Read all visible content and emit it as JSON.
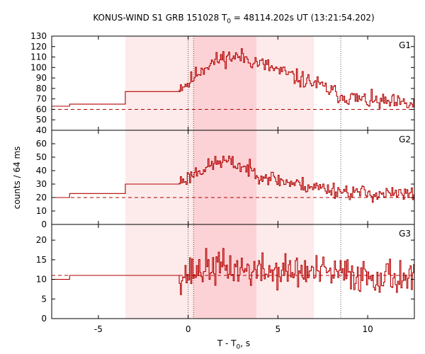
{
  "chart_data": {
    "type": "line",
    "title": {
      "prefix": "KONUS-WIND S1 GRB 151028 T",
      "sub": "0",
      "suffix": " = 48114.202s UT (13:21:54.202)"
    },
    "xlabel": {
      "prefix": "T - T",
      "sub": "0",
      "suffix": ", s"
    },
    "ylabel": "counts / 64 ms",
    "xlim": [
      -7.6,
      12.6
    ],
    "xticks": [
      -5,
      0,
      5,
      10
    ],
    "shaded_regions": [
      {
        "x0": -3.5,
        "x1": 7.0,
        "intensity": "light"
      },
      {
        "x0": 0.3,
        "x1": 3.8,
        "intensity": "medium"
      }
    ],
    "vertical_lines": [
      0.0,
      0.3,
      8.5
    ],
    "colors": {
      "line": "#b40000",
      "shade_light": "#fdeaea",
      "shade_dark": "#fcd2d6",
      "axis": "#000000"
    },
    "panels": [
      {
        "name": "G1",
        "ylim": [
          40,
          130
        ],
        "yticks": [
          40,
          50,
          60,
          70,
          80,
          90,
          100,
          110,
          120,
          130
        ],
        "background_level": 60,
        "steps": [
          [
            -7.6,
            63
          ],
          [
            -6.6,
            65
          ],
          [
            -3.5,
            77
          ],
          [
            -0.5,
            79
          ]
        ],
        "profile": [
          [
            -0.5,
            82
          ],
          [
            0.0,
            85
          ],
          [
            0.5,
            95
          ],
          [
            1.0,
            102
          ],
          [
            2.0,
            110
          ],
          [
            3.0,
            110
          ],
          [
            3.8,
            105
          ],
          [
            5.0,
            97
          ],
          [
            6.0,
            90
          ],
          [
            7.0,
            85
          ],
          [
            8.5,
            73
          ],
          [
            10.0,
            68
          ],
          [
            12.6,
            64
          ]
        ],
        "noise": 7,
        "seed": 11
      },
      {
        "name": "G2",
        "ylim": [
          0,
          70
        ],
        "yticks": [
          0,
          10,
          20,
          30,
          40,
          50,
          60
        ],
        "background_level": 20,
        "steps": [
          [
            -7.6,
            20
          ],
          [
            -6.6,
            23
          ],
          [
            -3.5,
            30
          ],
          [
            -0.5,
            31
          ]
        ],
        "profile": [
          [
            -0.5,
            32
          ],
          [
            0.0,
            35
          ],
          [
            0.5,
            40
          ],
          [
            1.0,
            42
          ],
          [
            1.5,
            46
          ],
          [
            2.0,
            47
          ],
          [
            3.0,
            43
          ],
          [
            3.8,
            38
          ],
          [
            5.0,
            33
          ],
          [
            6.0,
            30
          ],
          [
            7.0,
            28
          ],
          [
            8.5,
            25
          ],
          [
            10.0,
            23
          ],
          [
            12.6,
            22
          ]
        ],
        "noise": 5,
        "seed": 23
      },
      {
        "name": "G3",
        "ylim": [
          0,
          24
        ],
        "yticks": [
          0,
          5,
          10,
          15,
          20
        ],
        "background_level": 11,
        "steps": [
          [
            -7.6,
            10
          ],
          [
            -6.6,
            11
          ],
          [
            -3.5,
            11
          ],
          [
            -0.5,
            11
          ]
        ],
        "profile": [
          [
            -0.5,
            11
          ],
          [
            0.0,
            11.5
          ],
          [
            1.0,
            13
          ],
          [
            2.0,
            13
          ],
          [
            3.0,
            12.5
          ],
          [
            4.0,
            12
          ],
          [
            6.0,
            12
          ],
          [
            8.0,
            11.5
          ],
          [
            10.0,
            11
          ],
          [
            12.6,
            10.5
          ]
        ],
        "noise": 3.8,
        "seed": 37
      }
    ]
  }
}
